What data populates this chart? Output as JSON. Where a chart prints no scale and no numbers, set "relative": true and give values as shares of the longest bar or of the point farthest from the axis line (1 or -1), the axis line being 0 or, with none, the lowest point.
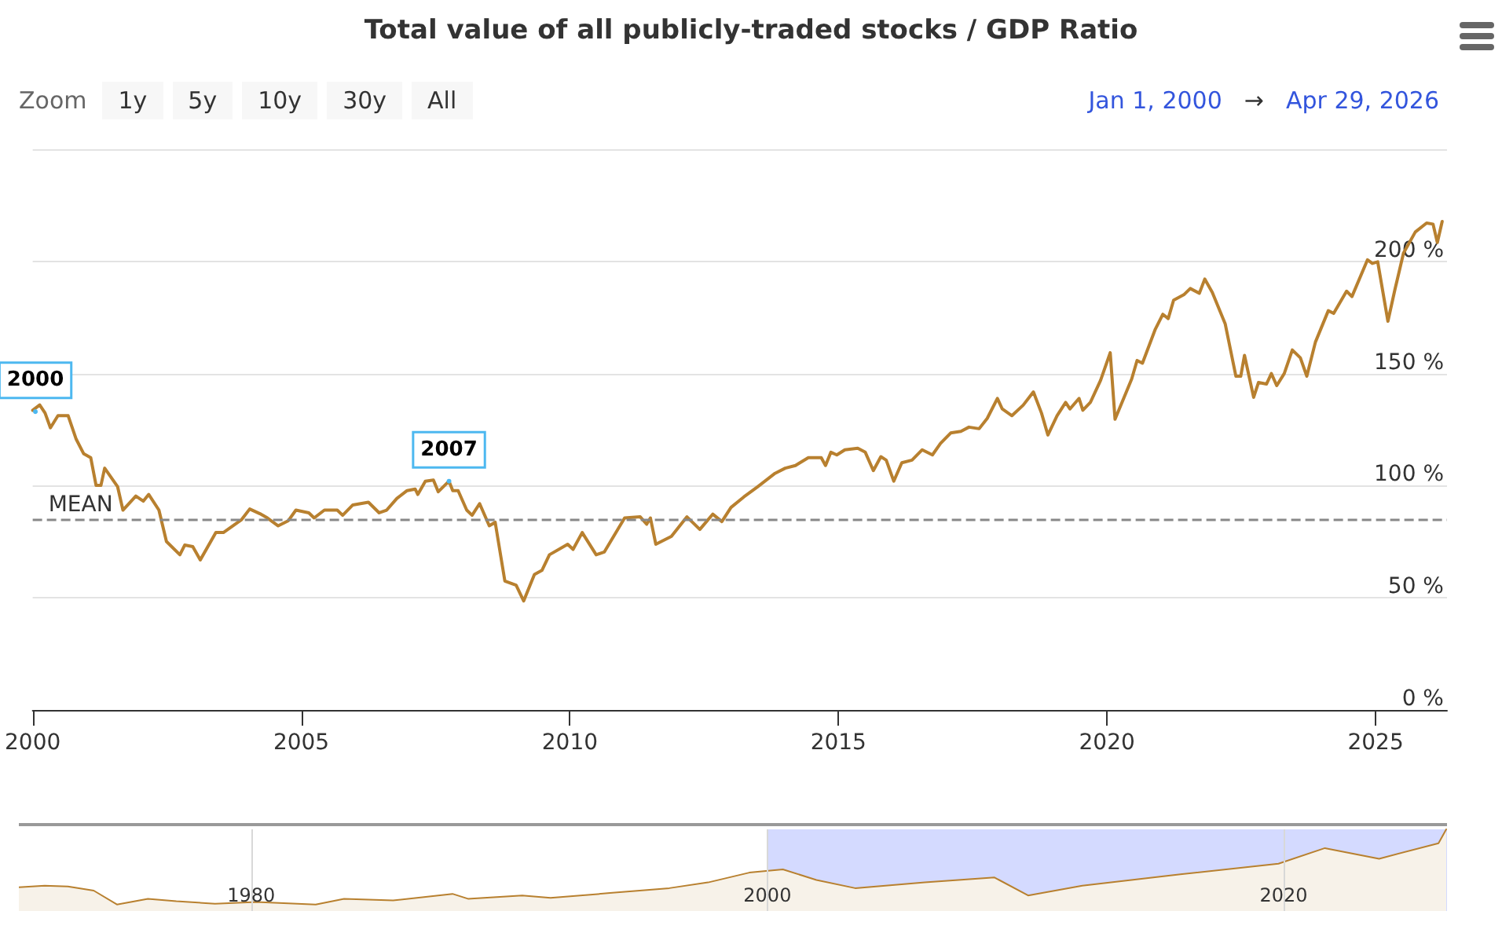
{
  "chart_data": [
    {
      "type": "line",
      "title": "Total value of all publicly-traded stocks / GDP Ratio",
      "x": [
        2000.0,
        2000.13,
        2000.23,
        2000.33,
        2000.47,
        2000.66,
        2000.81,
        2000.95,
        2001.08,
        2001.18,
        2001.27,
        2001.34,
        2001.58,
        2001.68,
        2001.92,
        2002.06,
        2002.16,
        2002.35,
        2002.49,
        2002.74,
        2002.83,
        2002.98,
        2003.12,
        2003.41,
        2003.55,
        2003.89,
        2004.04,
        2004.23,
        2004.37,
        2004.57,
        2004.76,
        2004.9,
        2005.14,
        2005.24,
        2005.43,
        2005.67,
        2005.77,
        2005.96,
        2006.25,
        2006.45,
        2006.59,
        2006.78,
        2006.97,
        2007.12,
        2007.17,
        2007.31,
        2007.46,
        2007.55,
        2007.75,
        2007.82,
        2007.92,
        2008.08,
        2008.18,
        2008.32,
        2008.5,
        2008.61,
        2008.79,
        2009.0,
        2009.14,
        2009.34,
        2009.48,
        2009.62,
        2009.96,
        2010.06,
        2010.23,
        2010.49,
        2010.64,
        2011.02,
        2011.31,
        2011.43,
        2011.5,
        2011.6,
        2011.89,
        2012.18,
        2012.42,
        2012.66,
        2012.83,
        2013.0,
        2013.24,
        2013.5,
        2013.82,
        2014.01,
        2014.2,
        2014.44,
        2014.68,
        2014.76,
        2014.86,
        2014.97,
        2015.12,
        2015.36,
        2015.5,
        2015.65,
        2015.79,
        2015.89,
        2016.03,
        2016.18,
        2016.37,
        2016.56,
        2016.75,
        2016.9,
        2017.09,
        2017.28,
        2017.43,
        2017.62,
        2017.77,
        2017.96,
        2018.05,
        2018.23,
        2018.44,
        2018.63,
        2018.78,
        2018.9,
        2019.07,
        2019.23,
        2019.31,
        2019.48,
        2019.55,
        2019.69,
        2019.88,
        2020.06,
        2020.15,
        2020.46,
        2020.56,
        2020.66,
        2020.9,
        2021.04,
        2021.14,
        2021.24,
        2021.43,
        2021.55,
        2021.72,
        2021.82,
        2021.96,
        2022.2,
        2022.4,
        2022.49,
        2022.56,
        2022.73,
        2022.82,
        2022.97,
        2023.06,
        2023.16,
        2023.3,
        2023.45,
        2023.6,
        2023.72,
        2023.88,
        2024.12,
        2024.22,
        2024.46,
        2024.56,
        2024.85,
        2024.94,
        2025.04,
        2025.23,
        2025.36,
        2025.52,
        2025.74,
        2025.95,
        2026.07,
        2026.15,
        2026.24
      ],
      "series": [
        {
          "color": "#b8802f",
          "values": [
            133.6,
            136,
            132.4,
            125.8,
            131.2,
            131.2,
            120.7,
            114.2,
            112.5,
            100.1,
            100.1,
            107.8,
            99.6,
            89.1,
            95.4,
            93.1,
            96.1,
            89.1,
            75.1,
            69.2,
            73.5,
            72.8,
            66.9,
            79.1,
            79.1,
            84.9,
            89.6,
            87.5,
            85.6,
            82.1,
            84.4,
            89.1,
            87.9,
            85.6,
            89.1,
            89.1,
            86.8,
            91.4,
            92.6,
            87.9,
            89.1,
            94.3,
            97.8,
            98.5,
            96.1,
            102.0,
            102.5,
            97.3,
            102.0,
            97.8,
            97.8,
            89.1,
            86.8,
            92.0,
            82.1,
            83.7,
            57.5,
            55.6,
            48.6,
            60.4,
            62.2,
            69.2,
            73.9,
            71.6,
            79.1,
            69.2,
            70.4,
            85.6,
            86.1,
            82.8,
            85.6,
            73.9,
            77.4,
            86.1,
            80.5,
            87.3,
            84.0,
            90.3,
            95.0,
            99.6,
            105.5,
            107.8,
            109.0,
            112.5,
            112.5,
            109.0,
            114.9,
            113.7,
            116.0,
            116.7,
            114.9,
            106.7,
            112.9,
            111.4,
            102.0,
            110.2,
            111.4,
            116.0,
            113.7,
            118.8,
            123.5,
            124.2,
            126.1,
            125.4,
            130.0,
            138.9,
            134.2,
            131.2,
            135.9,
            141.8,
            132.4,
            122.6,
            131.2,
            137.1,
            134.2,
            138.9,
            133.6,
            137.1,
            146.9,
            159.3,
            129.6,
            147.6,
            155.8,
            154.6,
            169.8,
            176.4,
            174.5,
            182.7,
            185.1,
            187.9,
            185.8,
            192.1,
            186.2,
            172.2,
            148.8,
            148.8,
            158.1,
            139.4,
            146.0,
            145.3,
            150.0,
            144.6,
            150.0,
            160.5,
            157.0,
            148.8,
            164.0,
            178.0,
            176.8,
            186.7,
            184.3,
            200.7,
            199.1,
            199.8,
            173.3,
            187.4,
            203.7,
            213.1,
            217.1,
            216.6,
            208.4,
            217.8
          ]
        }
      ],
      "xlim": [
        2000,
        2026.33
      ],
      "xticks": [
        2000,
        2005,
        2010,
        2015,
        2020,
        2025
      ],
      "ylim": [
        0,
        250
      ],
      "yticks": [
        {
          "value": 0,
          "label": "0 %"
        },
        {
          "value": 50,
          "label": "50 %"
        },
        {
          "value": 100,
          "label": "100 %"
        },
        {
          "value": 150,
          "label": "150 %"
        },
        {
          "value": 200,
          "label": "200 %"
        },
        {
          "value": 250,
          "label": null
        }
      ],
      "grid": "y",
      "marker": "none",
      "line_style": "solid",
      "ref_lines": [
        {
          "axis": "y",
          "value": 85,
          "label": "MEAN",
          "color": "#888888",
          "line_style": "dashed"
        }
      ],
      "annotations": [
        {
          "text": "2000",
          "x": 2000.05,
          "y": 133
        },
        {
          "text": "2007",
          "x": 2007.75,
          "y": 102
        },
        "Zoom",
        "1y",
        "5y",
        "10y",
        "30y",
        "All",
        "Jan 1, 2000",
        "→",
        "Apr 29, 2026"
      ]
    },
    {
      "type": "area",
      "relative": true,
      "x": [
        1971.0,
        1972.0,
        1972.9,
        1973.9,
        1974.8,
        1976.0,
        1977.1,
        1978.6,
        1980.2,
        1982.5,
        1983.6,
        1985.5,
        1987.8,
        1988.4,
        1990.5,
        1991.6,
        1993.9,
        1996.2,
        1997.7,
        1999.3,
        2000.6,
        2001.9,
        2003.4,
        2006.1,
        2008.8,
        2010.1,
        2012.2,
        2016.0,
        2019.8,
        2021.6,
        2023.7,
        2026.0,
        2026.3
      ],
      "series": [
        {
          "color": "#b8802f",
          "values": [
            0.29,
            0.31,
            0.3,
            0.25,
            0.08,
            0.15,
            0.12,
            0.09,
            0.11,
            0.08,
            0.15,
            0.13,
            0.21,
            0.15,
            0.19,
            0.16,
            0.22,
            0.28,
            0.35,
            0.47,
            0.51,
            0.38,
            0.28,
            0.35,
            0.41,
            0.19,
            0.31,
            0.45,
            0.58,
            0.77,
            0.64,
            0.83,
            1
          ]
        }
      ],
      "xlim": [
        1971,
        2026.33
      ],
      "xticks": [
        1980,
        2000,
        2020
      ],
      "grid": "x",
      "marker": "none",
      "bands": [
        {
          "axis": "x",
          "from": 2000,
          "to": 2026.33,
          "color": "#ccd3ff"
        }
      ]
    }
  ]
}
